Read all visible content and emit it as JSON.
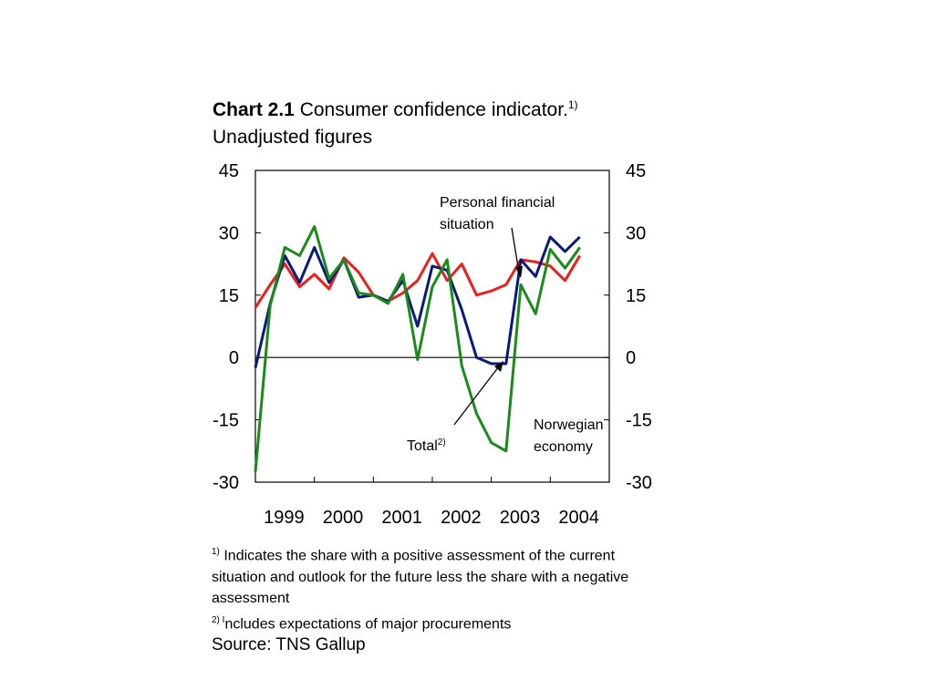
{
  "title": {
    "prefix": "Chart 2.1",
    "text": " Consumer confidence indicator.",
    "sup": "1)",
    "subtitle": "Unadjusted figures"
  },
  "notes": {
    "note1_marker": "1)",
    "note1_text": " Indicates the share with a positive assessment of the current situation and outlook for the future less the share with a negative assessment",
    "note2_marker": "2) I",
    "note2_text": "ncludes expectations of major procurements"
  },
  "source": "Source: TNS Gallup",
  "annotations": {
    "personal_line1": "Personal financial",
    "personal_line2": "situation",
    "total": "Total",
    "total_sup": "2)",
    "norwegian_line1": "Norwegian",
    "norwegian_line2": "economy"
  },
  "chart_data": {
    "type": "line",
    "ylim": [
      -30,
      45
    ],
    "yticks": [
      45,
      30,
      15,
      0,
      -15,
      -30
    ],
    "xlim": [
      1999,
      2005
    ],
    "xticks": [
      "1999",
      "2000",
      "2001",
      "2002",
      "2003",
      "2004"
    ],
    "grid": false,
    "series": [
      {
        "name": "Total",
        "color": "#0a1a7a",
        "points": [
          [
            1999.0,
            -2.5
          ],
          [
            1999.25,
            13
          ],
          [
            1999.5,
            24.5
          ],
          [
            1999.75,
            18
          ],
          [
            2000.0,
            26.5
          ],
          [
            2000.25,
            18
          ],
          [
            2000.5,
            23.5
          ],
          [
            2000.75,
            14.5
          ],
          [
            2001.0,
            15
          ],
          [
            2001.25,
            13.5
          ],
          [
            2001.5,
            18.5
          ],
          [
            2001.75,
            7.5
          ],
          [
            2002.0,
            22
          ],
          [
            2002.25,
            21
          ],
          [
            2002.5,
            11.5
          ],
          [
            2002.75,
            0
          ],
          [
            2003.0,
            -1.5
          ],
          [
            2003.25,
            -1.5
          ],
          [
            2003.5,
            23.5
          ],
          [
            2003.75,
            19.5
          ],
          [
            2004.0,
            29
          ],
          [
            2004.25,
            25.5
          ],
          [
            2004.5,
            29
          ]
        ]
      },
      {
        "name": "Personal financial situation",
        "color": "#e8201e",
        "points": [
          [
            1999.0,
            12
          ],
          [
            1999.25,
            17.5
          ],
          [
            1999.5,
            22.5
          ],
          [
            1999.75,
            17
          ],
          [
            2000.0,
            20
          ],
          [
            2000.25,
            16.5
          ],
          [
            2000.5,
            24
          ],
          [
            2000.75,
            20.5
          ],
          [
            2001.0,
            15
          ],
          [
            2001.25,
            13.5
          ],
          [
            2001.5,
            15.5
          ],
          [
            2001.75,
            18.5
          ],
          [
            2002.0,
            25
          ],
          [
            2002.25,
            18.5
          ],
          [
            2002.5,
            22.5
          ],
          [
            2002.75,
            15
          ],
          [
            2003.0,
            16
          ],
          [
            2003.25,
            17.5
          ],
          [
            2003.5,
            23.5
          ],
          [
            2003.75,
            23
          ],
          [
            2004.0,
            22
          ],
          [
            2004.25,
            18.5
          ],
          [
            2004.5,
            24.5
          ]
        ]
      },
      {
        "name": "Norwegian economy",
        "color": "#1a8a1a",
        "points": [
          [
            1999.0,
            -27.5
          ],
          [
            1999.25,
            12.5
          ],
          [
            1999.5,
            26.5
          ],
          [
            1999.75,
            24.5
          ],
          [
            2000.0,
            31.5
          ],
          [
            2000.25,
            19
          ],
          [
            2000.5,
            23.5
          ],
          [
            2000.75,
            15.5
          ],
          [
            2001.0,
            15
          ],
          [
            2001.25,
            13
          ],
          [
            2001.5,
            20
          ],
          [
            2001.75,
            -0.5
          ],
          [
            2002.0,
            17
          ],
          [
            2002.25,
            23.5
          ],
          [
            2002.5,
            -2
          ],
          [
            2002.75,
            -13.5
          ],
          [
            2003.0,
            -20.5
          ],
          [
            2003.25,
            -22.5
          ],
          [
            2003.5,
            17.5
          ],
          [
            2003.75,
            10.5
          ],
          [
            2004.0,
            26
          ],
          [
            2004.25,
            21.5
          ],
          [
            2004.5,
            26.5
          ]
        ]
      }
    ]
  }
}
